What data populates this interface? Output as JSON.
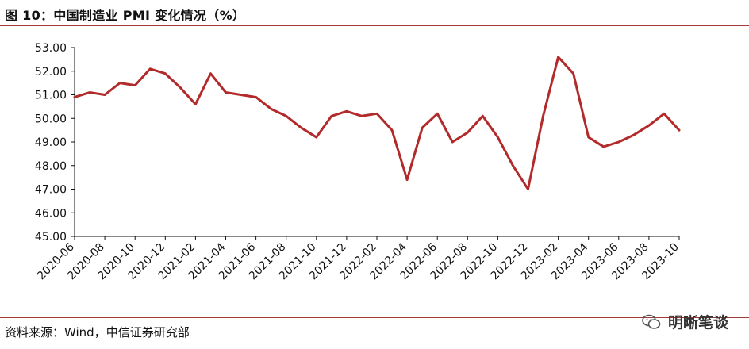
{
  "header": {
    "title": "图 10：中国制造业 PMI 变化情况（%）"
  },
  "footer": {
    "source": "资料来源：Wind，中信证券研究部"
  },
  "watermark": {
    "text": "明晰笔谈",
    "icon": "wechat-icon"
  },
  "colors": {
    "line": "#b22a2a",
    "rule": "#a33a3a"
  },
  "chart_data": {
    "type": "line",
    "title": "",
    "xlabel": "",
    "ylabel": "",
    "ylim": [
      45.0,
      53.0
    ],
    "yticks": [
      "45.00",
      "46.00",
      "47.00",
      "48.00",
      "49.00",
      "50.00",
      "51.00",
      "52.00",
      "53.00"
    ],
    "grid": false,
    "x_tick_labels": [
      "2020-06",
      "2020-08",
      "2020-10",
      "2020-12",
      "2021-02",
      "2021-04",
      "2021-06",
      "2021-08",
      "2021-10",
      "2021-12",
      "2022-02",
      "2022-04",
      "2022-06",
      "2022-08",
      "2022-10",
      "2022-12",
      "2023-02",
      "2023-04",
      "2023-06",
      "2023-08",
      "2023-10"
    ],
    "x": [
      "2020-06",
      "2020-07",
      "2020-08",
      "2020-09",
      "2020-10",
      "2020-11",
      "2020-12",
      "2021-01",
      "2021-02",
      "2021-03",
      "2021-04",
      "2021-05",
      "2021-06",
      "2021-07",
      "2021-08",
      "2021-09",
      "2021-10",
      "2021-11",
      "2021-12",
      "2022-01",
      "2022-02",
      "2022-03",
      "2022-04",
      "2022-05",
      "2022-06",
      "2022-07",
      "2022-08",
      "2022-09",
      "2022-10",
      "2022-11",
      "2022-12",
      "2023-01",
      "2023-02",
      "2023-03",
      "2023-04",
      "2023-05",
      "2023-06",
      "2023-07",
      "2023-08",
      "2023-09",
      "2023-10"
    ],
    "series": [
      {
        "values": [
          50.9,
          51.1,
          51.0,
          51.5,
          51.4,
          52.1,
          51.9,
          51.3,
          50.6,
          51.9,
          51.1,
          51.0,
          50.9,
          50.4,
          50.1,
          49.6,
          49.2,
          50.1,
          50.3,
          50.1,
          50.2,
          49.5,
          47.4,
          49.6,
          50.2,
          49.0,
          49.4,
          50.1,
          49.2,
          48.0,
          47.0,
          50.1,
          52.6,
          51.9,
          49.2,
          48.8,
          49.0,
          49.3,
          49.7,
          50.2,
          49.5
        ]
      }
    ]
  }
}
